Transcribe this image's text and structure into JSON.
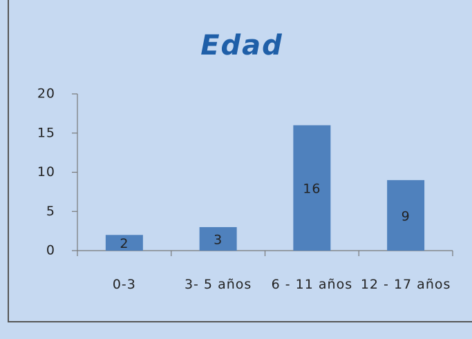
{
  "chart_data": {
    "type": "bar",
    "title": "Edad",
    "categories": [
      "0-3",
      "3- 5 años",
      "6 - 11 años",
      "12 - 17 años"
    ],
    "values": [
      2,
      3,
      16,
      9
    ],
    "color": "#4f81bd",
    "ylim": [
      0,
      20
    ],
    "yticks": [
      0,
      5,
      10,
      15,
      20
    ],
    "grid": false
  }
}
